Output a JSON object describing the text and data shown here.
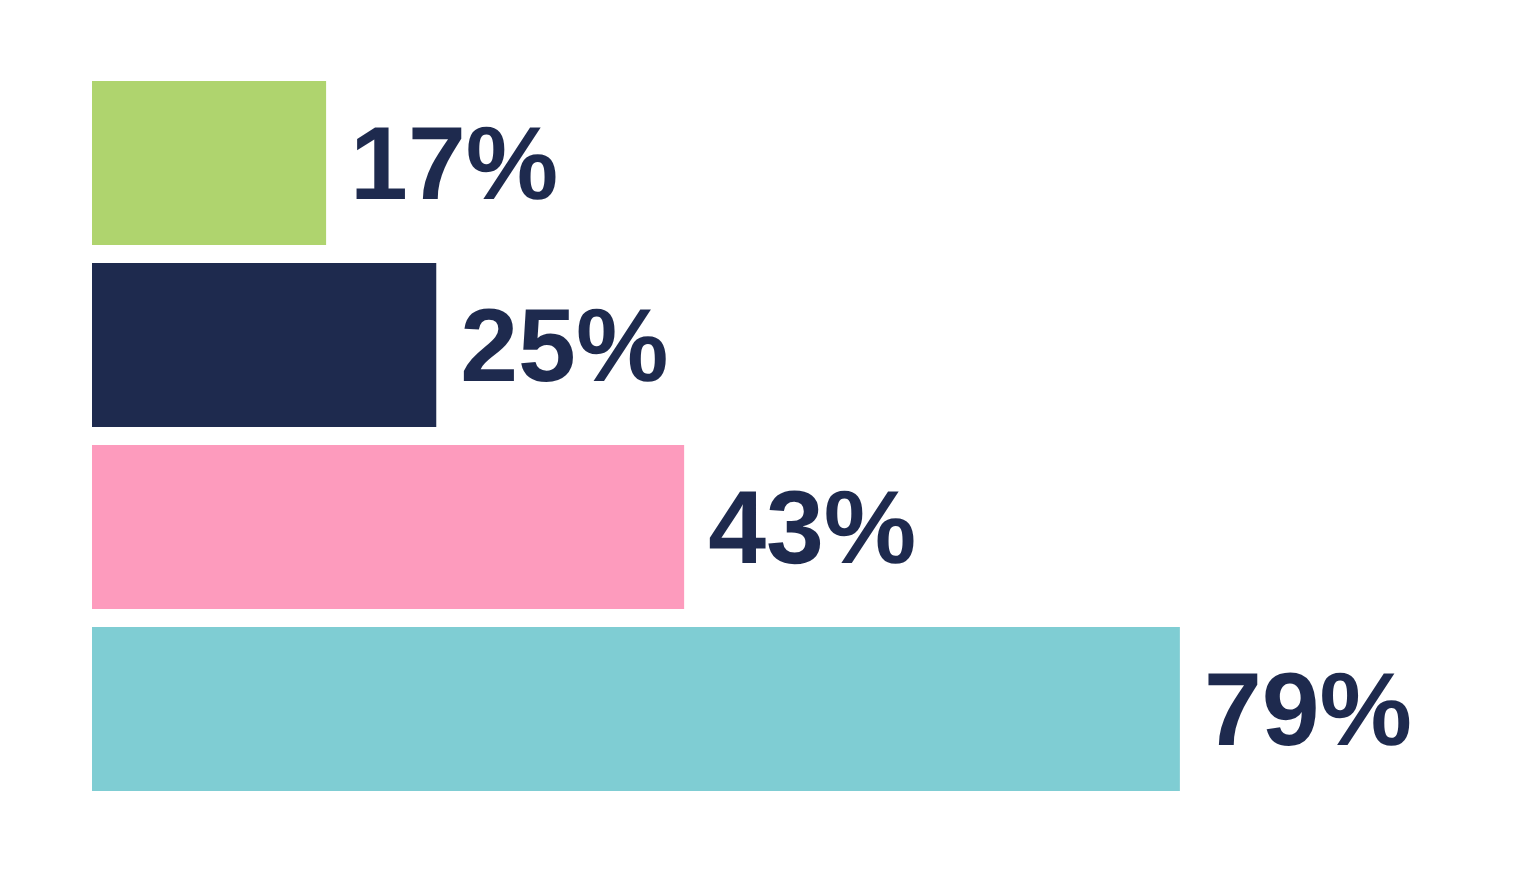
{
  "chart_data": {
    "type": "bar",
    "orientation": "horizontal",
    "categories": [
      null,
      null,
      null,
      null
    ],
    "values": [
      17,
      25,
      43,
      79
    ],
    "colors": [
      "#afd46e",
      "#1e2a4e",
      "#fd9bbd",
      "#7fcdd3"
    ],
    "value_labels": [
      "17%",
      "25%",
      "43%",
      "79%"
    ],
    "tick_labels": false,
    "grid": false
  }
}
